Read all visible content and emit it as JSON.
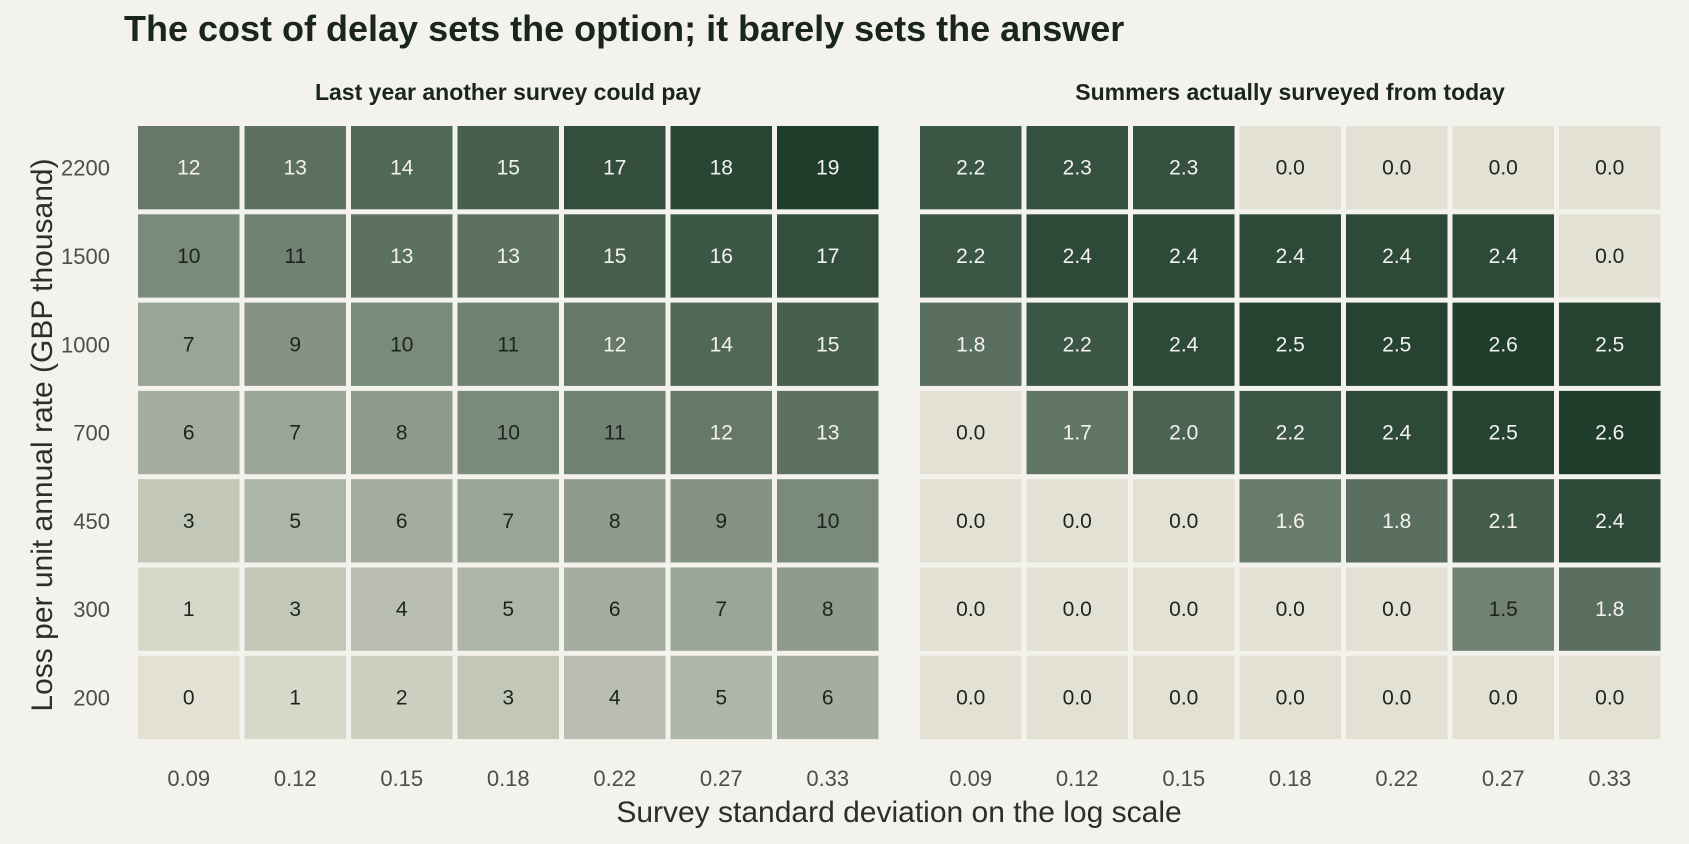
{
  "chart_data": {
    "type": "heatmap",
    "title": "The cost of delay sets the option; it barely sets the answer",
    "xlabel": "Survey standard deviation on the log scale",
    "ylabel": "Loss per unit annual rate (GBP thousand)",
    "x_categories": [
      "0.09",
      "0.12",
      "0.15",
      "0.18",
      "0.22",
      "0.27",
      "0.33"
    ],
    "y_categories": [
      "2200",
      "1500",
      "1000",
      "700",
      "450",
      "300",
      "200"
    ],
    "grid": false,
    "legend": "none",
    "colors": {
      "low": "#e2e1d3",
      "high": "#1e3d2b",
      "background": "#f3f2ec"
    },
    "panels": [
      {
        "title": "Last year another survey could pay",
        "label_decimals": 0,
        "max": 19,
        "values": [
          [
            12,
            13,
            14,
            15,
            17,
            18,
            19
          ],
          [
            10,
            11,
            13,
            13,
            15,
            16,
            17
          ],
          [
            7,
            9,
            10,
            11,
            12,
            14,
            15
          ],
          [
            6,
            7,
            8,
            10,
            11,
            12,
            13
          ],
          [
            3,
            5,
            6,
            7,
            8,
            9,
            10
          ],
          [
            1,
            3,
            4,
            5,
            6,
            7,
            8
          ],
          [
            0,
            1,
            2,
            3,
            4,
            5,
            6
          ]
        ]
      },
      {
        "title": "Summers actually surveyed from today",
        "label_decimals": 1,
        "max": 2.6,
        "values": [
          [
            2.2,
            2.3,
            2.3,
            0.0,
            0.0,
            0.0,
            0.0
          ],
          [
            2.2,
            2.4,
            2.4,
            2.4,
            2.4,
            2.4,
            0.0
          ],
          [
            1.8,
            2.2,
            2.4,
            2.5,
            2.5,
            2.6,
            2.5
          ],
          [
            0.0,
            1.7,
            2.0,
            2.2,
            2.4,
            2.5,
            2.6
          ],
          [
            0.0,
            0.0,
            0.0,
            1.6,
            1.8,
            2.1,
            2.4
          ],
          [
            0.0,
            0.0,
            0.0,
            0.0,
            0.0,
            1.5,
            1.8
          ],
          [
            0.0,
            0.0,
            0.0,
            0.0,
            0.0,
            0.0,
            0.0
          ]
        ]
      }
    ]
  }
}
